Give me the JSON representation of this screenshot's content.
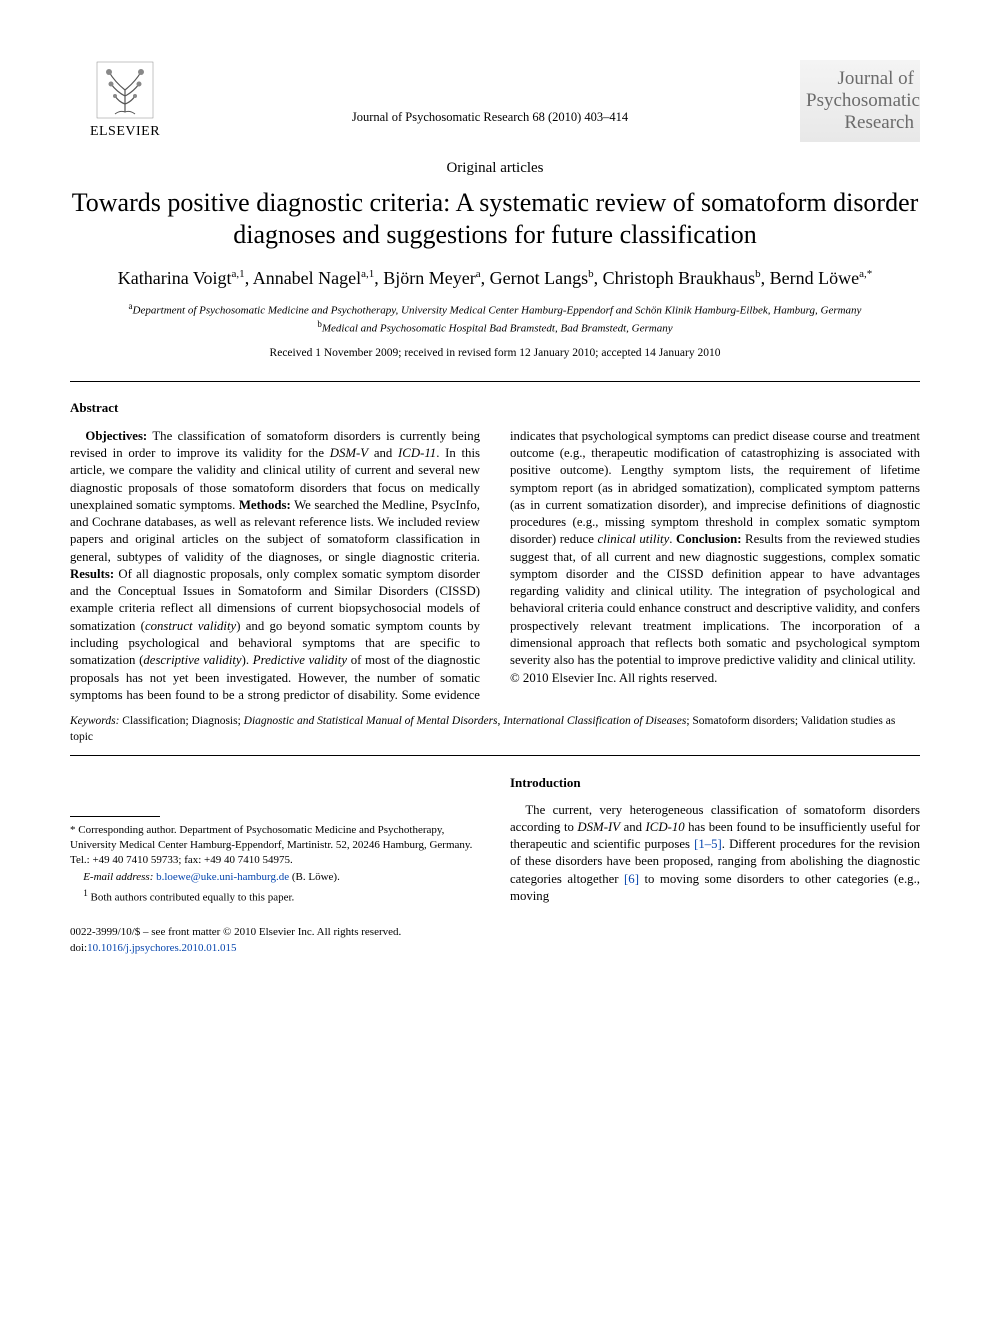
{
  "publisher": {
    "name": "ELSEVIER",
    "logo_colors": {
      "fill": "#d9d9d9",
      "stroke": "#666666"
    }
  },
  "journal_ref": "Journal of Psychosomatic Research 68 (2010) 403–414",
  "journal_logo": {
    "line1": "Journal of",
    "line2": "Psychosomatic",
    "line3": "Research"
  },
  "article_type": "Original articles",
  "title": "Towards positive diagnostic criteria: A systematic review of somatoform disorder diagnoses and suggestions for future classification",
  "authors_html": "Katharina Voigt<sup>a,1</sup>, Annabel Nagel<sup>a,1</sup>, Björn Meyer<sup>a</sup>, Gernot Langs<sup>b</sup>, Christoph Braukhaus<sup>b</sup>, Bernd Löwe<sup>a,*</sup>",
  "affiliations": {
    "a": "Department of Psychosomatic Medicine and Psychotherapy, University Medical Center Hamburg-Eppendorf and Schön Klinik Hamburg-Eilbek, Hamburg, Germany",
    "b": "Medical and Psychosomatic Hospital Bad Bramstedt, Bad Bramstedt, Germany"
  },
  "dates": "Received 1 November 2009; received in revised form 12 January 2010; accepted 14 January 2010",
  "abstract_heading": "Abstract",
  "abstract_html": "<strong>Objectives:</strong> The classification of somatoform disorders is currently being revised in order to improve its validity for the <em>DSM-V</em> and <em>ICD-11</em>. In this article, we compare the validity and clinical utility of current and several new diagnostic proposals of those somatoform disorders that focus on medically unexplained somatic symptoms. <strong>Methods:</strong> We searched the Medline, PsycInfo, and Cochrane databases, as well as relevant reference lists. We included review papers and original articles on the subject of somatoform classification in general, subtypes of validity of the diagnoses, or single diagnostic criteria. <strong>Results:</strong> Of all diagnostic proposals, only complex somatic symptom disorder and the Conceptual Issues in Somatoform and Similar Disorders (CISSD) example criteria reflect all dimensions of current biopsychosocial models of somatization (<em>construct validity</em>) and go beyond somatic symptom counts by including psychological and behavioral symptoms that are specific to somatization (<em>descriptive validity</em>). <em>Predictive validity</em> of most of the diagnostic proposals has not yet been investigated. However, the number of somatic symptoms has been found to be a strong predictor of disability. Some evidence indicates that psychological symptoms can predict disease course and treatment outcome (e.g., therapeutic modification of catastrophizing is associated with positive outcome). Lengthy symptom lists, the requirement of lifetime symptom report (as in abridged somatization), complicated symptom patterns (as in current somatization disorder), and imprecise definitions of diagnostic procedures (e.g., missing symptom threshold in complex somatic symptom disorder) reduce <em>clinical utility</em>. <strong>Conclusion:</strong> Results from the reviewed studies suggest that, of all current and new diagnostic suggestions, complex somatic symptom disorder and the CISSD definition appear to have advantages regarding validity and clinical utility. The integration of psychological and behavioral criteria could enhance construct and descriptive validity, and confers prospectively relevant treatment implications. The incorporation of a dimensional approach that reflects both somatic and psychological symptom severity also has the potential to improve predictive validity and clinical utility.",
  "copyright_line": "© 2010 Elsevier Inc. All rights reserved.",
  "keywords_label": "Keywords:",
  "keywords_html": "Classification; Diagnosis; <em>Diagnostic and Statistical Manual of Mental Disorders</em>, <em>International Classification of Diseases</em>; Somatoform disorders; Validation studies as topic",
  "introduction": {
    "heading": "Introduction",
    "paragraph_html": "The current, very heterogeneous classification of somatoform disorders according to <em>DSM-IV</em> and <em>ICD-10</em> has been found to be insufficiently useful for therapeutic and scientific purposes <span class=\"cite\">[1–5]</span>. Different procedures for the revision of these disorders have been proposed, ranging from abolishing the diagnostic categories altogether <span class=\"cite\">[6]</span> to moving some disorders to other categories (e.g., moving"
  },
  "footnotes": {
    "corresponding": "* Corresponding author. Department of Psychosomatic Medicine and Psychotherapy, University Medical Center Hamburg-Eppendorf, Martinistr. 52, 20246 Hamburg, Germany. Tel.: +49 40 7410 59733; fax: +49 40 7410 54975.",
    "email_label": "E-mail address:",
    "email": "b.loewe@uke.uni-hamburg.de",
    "email_name": "(B. Löwe).",
    "note1": "Both authors contributed equally to this paper.",
    "note1_marker": "1"
  },
  "footer": {
    "issn_line": "0022-3999/10/$ – see front matter © 2010 Elsevier Inc. All rights reserved.",
    "doi_label": "doi:",
    "doi": "10.1016/j.jpsychores.2010.01.015"
  },
  "colors": {
    "link": "#0645ad",
    "text": "#000000",
    "logo_gray": "#6b6b6b"
  }
}
